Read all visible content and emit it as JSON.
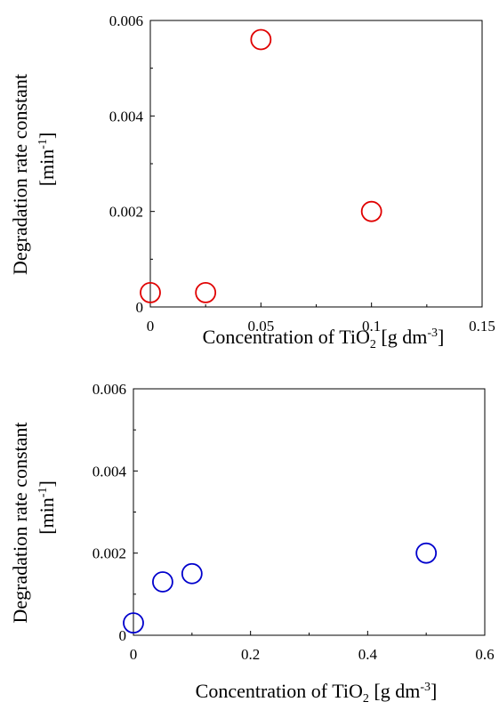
{
  "chart_data": [
    {
      "type": "scatter",
      "title": "",
      "xlabel": "Concentration of TiO2 [g dm-3]",
      "xlabel_parts": {
        "base": "Concentration of TiO",
        "sub": "2",
        "unit_open": " [g dm",
        "sup": "-3",
        "unit_close": "]"
      },
      "ylabel_line1": "Degradation rate constant",
      "ylabel_line2": {
        "base": "[min",
        "sup": "-1",
        "close": "]"
      },
      "xlim": [
        0,
        0.15
      ],
      "ylim": [
        0,
        0.006
      ],
      "xticks": [
        "0",
        "0.05",
        "0.1",
        "0.15"
      ],
      "yticks": [
        "0",
        "0.002",
        "0.004",
        "0.006"
      ],
      "grid": false,
      "marker": "open-circle",
      "color": "#e00000",
      "series": [
        {
          "x": [
            0,
            0.025,
            0.05,
            0.1
          ],
          "y": [
            0.0003,
            0.0003,
            0.0056,
            0.002
          ]
        }
      ]
    },
    {
      "type": "scatter",
      "title": "",
      "xlabel": "Concentration of TiO2 [g dm-3]",
      "xlabel_parts": {
        "base": "Concentration of TiO",
        "sub": "2",
        "unit_open": " [g dm",
        "sup": "-3",
        "unit_close": "]"
      },
      "ylabel_line1": "Degradation rate constant",
      "ylabel_line2": {
        "base": "[min",
        "sup": "-1",
        "close": "]"
      },
      "xlim": [
        0,
        0.6
      ],
      "ylim": [
        0,
        0.006
      ],
      "xticks": [
        "0",
        "0.2",
        "0.4",
        "0.6"
      ],
      "yticks": [
        "0",
        "0.002",
        "0.004",
        "0.006"
      ],
      "grid": false,
      "marker": "open-circle",
      "color": "#0000cc",
      "series": [
        {
          "x": [
            0,
            0.05,
            0.1,
            0.5
          ],
          "y": [
            0.0003,
            0.0013,
            0.0015,
            0.002
          ]
        }
      ]
    }
  ]
}
